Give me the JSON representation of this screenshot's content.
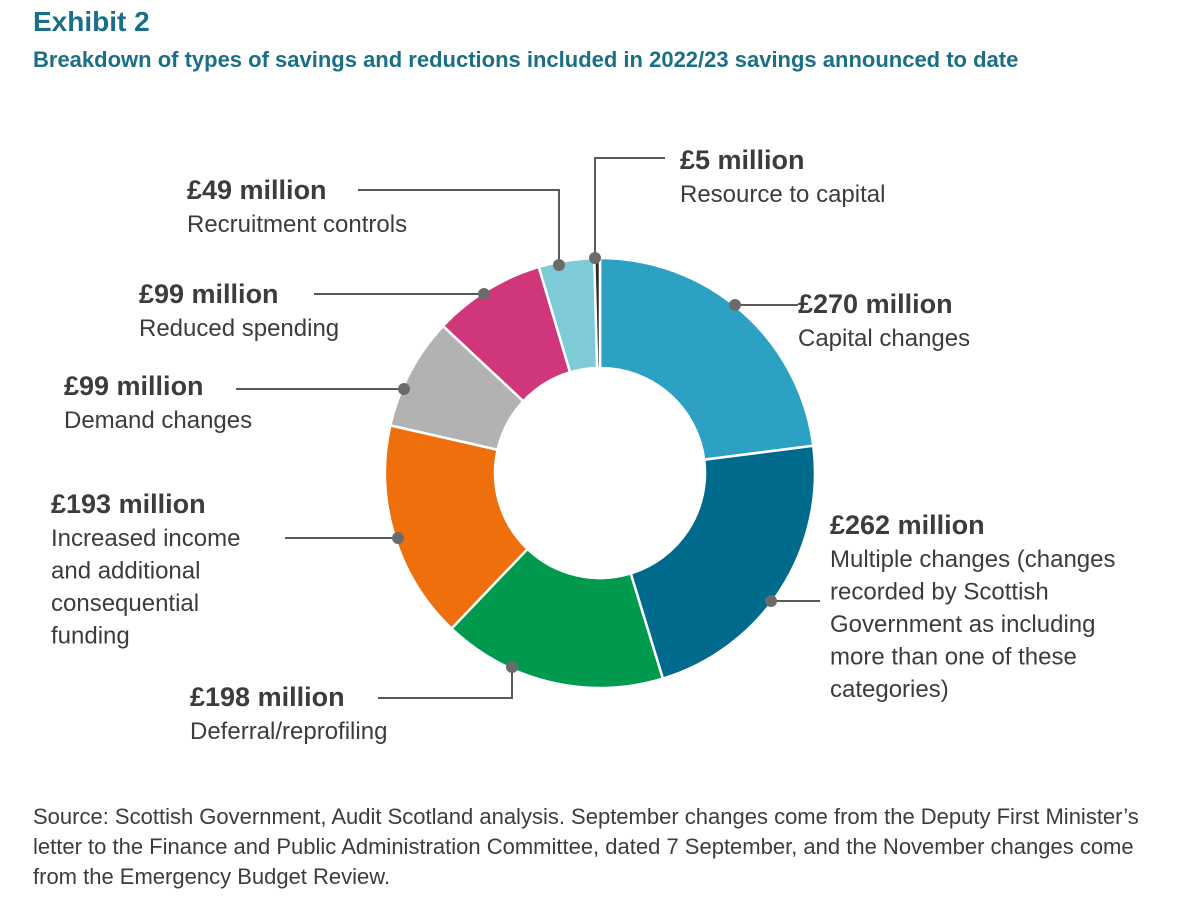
{
  "header": {
    "exhibit": "Exhibit 2",
    "title": "Breakdown of types of savings and reductions included in 2022/23 savings announced to date"
  },
  "chart_data": {
    "type": "pie",
    "variant": "donut",
    "start": "12 o'clock, clockwise",
    "slices": [
      {
        "value_label": "£270 million",
        "value": 270,
        "category": [
          "Capital changes"
        ],
        "color": "#2ca1c3"
      },
      {
        "value_label": "£262 million",
        "value": 262,
        "category": [
          "Multiple changes (changes",
          "recorded by Scottish",
          "Government as including",
          "more than one of these",
          "categories)"
        ],
        "color": "#006a8d"
      },
      {
        "value_label": "£198 million",
        "value": 198,
        "category": [
          "Deferral/reprofiling"
        ],
        "color": "#009a4e"
      },
      {
        "value_label": "£193 million",
        "value": 193,
        "category": [
          "Increased income",
          "and additional",
          "consequential",
          "funding"
        ],
        "color": "#ee6f0b"
      },
      {
        "value_label": "£99 million",
        "value": 99,
        "category": [
          "Demand changes"
        ],
        "color": "#b2b2b2"
      },
      {
        "value_label": "£99 million",
        "value": 99,
        "category": [
          "Reduced spending"
        ],
        "color": "#d0377a"
      },
      {
        "value_label": "£49 million",
        "value": 49,
        "category": [
          "Recruitment controls"
        ],
        "color": "#7ecad6"
      },
      {
        "value_label": "£5 million",
        "value": 5,
        "category": [
          "Resource to capital"
        ],
        "color": "#2b2b2b"
      }
    ]
  },
  "footer": {
    "source": "Source: Scottish Government, Audit Scotland analysis. September changes come from the Deputy First Minister’s letter to the Finance and Public Administration Committee, dated 7 September, and the November changes come from the Emergency Budget Review."
  }
}
